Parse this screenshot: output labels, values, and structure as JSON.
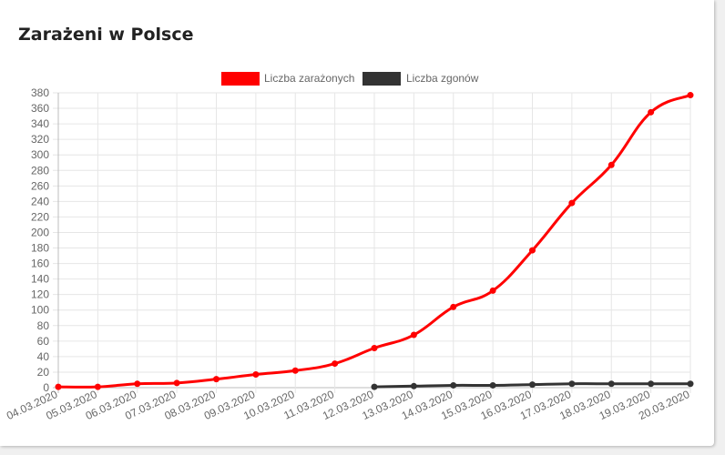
{
  "card": {
    "title": "Zarażeni w Polsce"
  },
  "chart_data": {
    "type": "line",
    "title": "",
    "xlabel": "",
    "ylabel": "",
    "x": [
      "04.03.2020",
      "05.03.2020",
      "06.03.2020",
      "07.03.2020",
      "08.03.2020",
      "09.03.2020",
      "10.03.2020",
      "11.03.2020",
      "12.03.2020",
      "13.03.2020",
      "14.03.2020",
      "15.03.2020",
      "16.03.2020",
      "17.03.2020",
      "18.03.2020",
      "19.03.2020",
      "20.03.2020"
    ],
    "ylim": [
      0,
      380
    ],
    "yticks": [
      0,
      20,
      40,
      60,
      80,
      100,
      120,
      140,
      160,
      180,
      200,
      220,
      240,
      260,
      280,
      300,
      320,
      340,
      360,
      380
    ],
    "grid": true,
    "legend_position": "top-center",
    "series": [
      {
        "name": "Liczba zarażonych",
        "color": "#ff0000",
        "values": [
          1,
          1,
          5,
          6,
          11,
          17,
          22,
          31,
          51,
          68,
          104,
          125,
          177,
          238,
          287,
          355,
          377
        ]
      },
      {
        "name": "Liczba zgonów",
        "color": "#333333",
        "values": [
          null,
          null,
          null,
          null,
          null,
          null,
          null,
          null,
          1,
          2,
          3,
          3,
          4,
          5,
          5,
          5,
          5
        ]
      }
    ]
  }
}
